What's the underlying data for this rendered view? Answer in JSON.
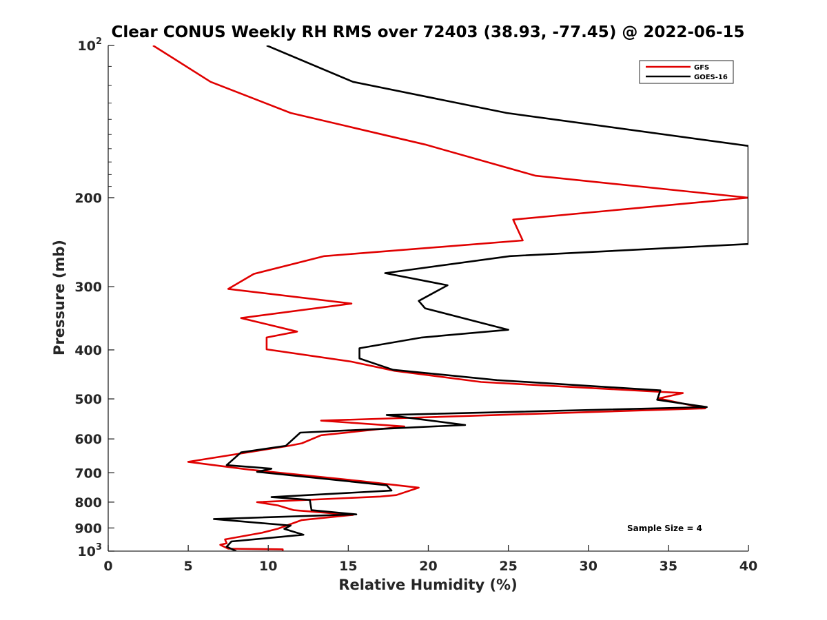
{
  "chart_data": {
    "type": "line",
    "title": "Clear CONUS Weekly RH RMS over 72403 (38.93, -77.45) @ 2022-06-15",
    "xlabel": "Relative Humidity (%)",
    "ylabel": "Pressure (mb)",
    "xlim": [
      0,
      40
    ],
    "ylim": [
      100,
      1000
    ],
    "y_scale": "log",
    "y_reversed": true,
    "x_ticks": [
      "0",
      "5",
      "10",
      "15",
      "20",
      "25",
      "30",
      "35",
      "40"
    ],
    "y_ticks": [
      {
        "value": 100,
        "base": "10",
        "exp": "2"
      },
      {
        "value": 200,
        "base": "200",
        "exp": ""
      },
      {
        "value": 300,
        "base": "300",
        "exp": ""
      },
      {
        "value": 400,
        "base": "400",
        "exp": ""
      },
      {
        "value": 500,
        "base": "500",
        "exp": ""
      },
      {
        "value": 600,
        "base": "600",
        "exp": ""
      },
      {
        "value": 700,
        "base": "700",
        "exp": ""
      },
      {
        "value": 800,
        "base": "800",
        "exp": ""
      },
      {
        "value": 900,
        "base": "900",
        "exp": ""
      },
      {
        "value": 1000,
        "base": "10",
        "exp": "3"
      }
    ],
    "legend": {
      "position": "top-right",
      "entries": [
        "GFS",
        "GOES-16"
      ]
    },
    "annotation": "Sample Size = 4",
    "series": [
      {
        "name": "GFS",
        "color": "#e00000",
        "points": [
          [
            2.8,
            100
          ],
          [
            6.4,
            118
          ],
          [
            11.4,
            136
          ],
          [
            19.8,
            157
          ],
          [
            26.7,
            181
          ],
          [
            40.0,
            200
          ],
          [
            25.3,
            221
          ],
          [
            25.9,
            243
          ],
          [
            13.5,
            261
          ],
          [
            9.1,
            283
          ],
          [
            7.5,
            303
          ],
          [
            15.2,
            324
          ],
          [
            8.3,
            346
          ],
          [
            11.8,
            368
          ],
          [
            9.9,
            378
          ],
          [
            9.9,
            399
          ],
          [
            15.2,
            422
          ],
          [
            17.9,
            440
          ],
          [
            23.3,
            463
          ],
          [
            35.9,
            487
          ],
          [
            34.4,
            499
          ],
          [
            37.3,
            522
          ],
          [
            13.3,
            552
          ],
          [
            18.5,
            567
          ],
          [
            13.3,
            590
          ],
          [
            12.1,
            612
          ],
          [
            11.3,
            619
          ],
          [
            5.0,
            666
          ],
          [
            8.8,
            690
          ],
          [
            10.0,
            696
          ],
          [
            15.8,
            727
          ],
          [
            19.4,
            749
          ],
          [
            18.0,
            775
          ],
          [
            17.0,
            780
          ],
          [
            9.3,
            800
          ],
          [
            10.6,
            812
          ],
          [
            11.6,
            830
          ],
          [
            15.3,
            848
          ],
          [
            12.1,
            868
          ],
          [
            10.6,
            903
          ],
          [
            9.6,
            920
          ],
          [
            7.3,
            948
          ],
          [
            7.4,
            965
          ],
          [
            7.0,
            972
          ],
          [
            7.5,
            989
          ],
          [
            10.9,
            992
          ],
          [
            10.9,
            1000
          ]
        ]
      },
      {
        "name": "GOES-16",
        "color": "#000000",
        "points": [
          [
            9.9,
            100
          ],
          [
            15.3,
            118
          ],
          [
            24.9,
            136
          ],
          [
            40.0,
            158
          ],
          [
            40.0,
            247
          ],
          [
            25.1,
            261
          ],
          [
            17.3,
            282
          ],
          [
            21.2,
            298
          ],
          [
            19.4,
            320
          ],
          [
            19.8,
            331
          ],
          [
            25.0,
            365
          ],
          [
            19.6,
            378
          ],
          [
            15.7,
            397
          ],
          [
            15.7,
            416
          ],
          [
            17.8,
            438
          ],
          [
            24.3,
            459
          ],
          [
            34.5,
            481
          ],
          [
            34.3,
            502
          ],
          [
            37.4,
            519
          ],
          [
            17.4,
            538
          ],
          [
            22.3,
            563
          ],
          [
            12.0,
            583
          ],
          [
            11.1,
            619
          ],
          [
            8.3,
            638
          ],
          [
            7.4,
            676
          ],
          [
            10.2,
            687
          ],
          [
            9.3,
            697
          ],
          [
            17.4,
            741
          ],
          [
            17.7,
            759
          ],
          [
            10.2,
            782
          ],
          [
            12.6,
            792
          ],
          [
            12.7,
            830
          ],
          [
            15.5,
            846
          ],
          [
            6.6,
            864
          ],
          [
            11.4,
            890
          ],
          [
            11.0,
            904
          ],
          [
            12.2,
            928
          ],
          [
            7.7,
            957
          ],
          [
            7.4,
            980
          ],
          [
            8.0,
            1000
          ]
        ]
      }
    ]
  }
}
